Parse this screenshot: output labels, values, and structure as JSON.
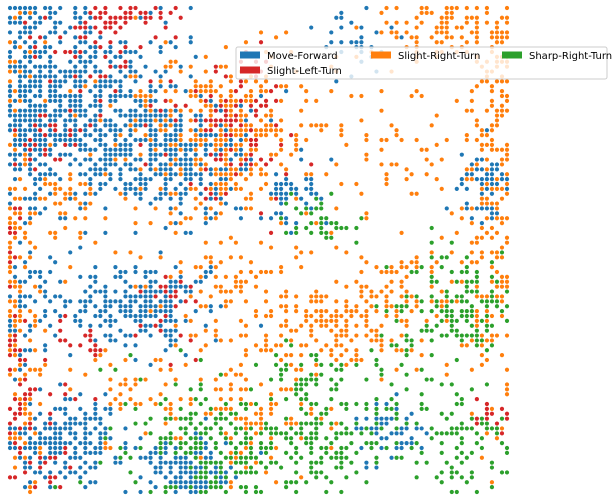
{
  "chart_data": {
    "type": "scatter",
    "title": "",
    "xlabel": "",
    "ylabel": "",
    "xlim": [
      0,
      99
    ],
    "ylim": [
      0,
      99
    ],
    "grid": false,
    "axes_visible": false,
    "legend_placement": "top-right",
    "point_generation": "blob-density-grid",
    "series": [
      {
        "name": "Move-Forward",
        "color": "#1f77b4",
        "blobs": [
          [
            6,
            80,
            14,
            12,
            0.7
          ],
          [
            20,
            73,
            10,
            8,
            0.6
          ],
          [
            33,
            68,
            9,
            7,
            0.6
          ],
          [
            25,
            39,
            8,
            5,
            0.7
          ],
          [
            11,
            10,
            8,
            5,
            0.7
          ],
          [
            35,
            4,
            5,
            4,
            0.7
          ],
          [
            2,
            97,
            6,
            4,
            0.5
          ],
          [
            55,
            60,
            4,
            4,
            0.4
          ],
          [
            94,
            63,
            3,
            4,
            0.6
          ],
          [
            75,
            13,
            4,
            4,
            0.4
          ],
          [
            69,
            92,
            4,
            4,
            0.3
          ],
          [
            4,
            40,
            4,
            10,
            0.3
          ]
        ]
      },
      {
        "name": "Slight-Right-Turn",
        "color": "#ff7f0e",
        "blobs": [
          [
            40,
            72,
            12,
            9,
            0.6
          ],
          [
            65,
            35,
            12,
            6,
            0.5
          ],
          [
            88,
            95,
            8,
            4,
            0.6
          ],
          [
            97,
            70,
            4,
            30,
            0.5
          ],
          [
            40,
            42,
            10,
            6,
            0.25
          ],
          [
            48,
            15,
            8,
            8,
            0.25
          ],
          [
            80,
            40,
            8,
            6,
            0.3
          ],
          [
            2,
            50,
            3,
            40,
            0.4
          ],
          [
            10,
            60,
            6,
            6,
            0.3
          ],
          [
            75,
            70,
            8,
            6,
            0.2
          ],
          [
            30,
            20,
            10,
            6,
            0.2
          ],
          [
            95,
            35,
            3,
            6,
            0.4
          ]
        ]
      },
      {
        "name": "Sharp-Right-Turn",
        "color": "#2ca02c",
        "blobs": [
          [
            90,
            38,
            7,
            5,
            0.7
          ],
          [
            42,
            8,
            10,
            8,
            0.6
          ],
          [
            63,
            12,
            9,
            6,
            0.5
          ],
          [
            80,
            28,
            6,
            6,
            0.3
          ],
          [
            60,
            22,
            5,
            4,
            0.5
          ],
          [
            58,
            5,
            8,
            4,
            0.4
          ],
          [
            88,
            10,
            6,
            6,
            0.4
          ],
          [
            62,
            55,
            4,
            3,
            0.4
          ]
        ]
      },
      {
        "name": "Slight-Left-Turn",
        "color": "#d62728",
        "blobs": [
          [
            45,
            74,
            6,
            7,
            0.6
          ],
          [
            5,
            73,
            6,
            4,
            0.6
          ],
          [
            25,
            98,
            6,
            2,
            0.6
          ],
          [
            30,
            37,
            3,
            4,
            0.6
          ],
          [
            20,
            80,
            6,
            6,
            0.3
          ],
          [
            1,
            25,
            2,
            20,
            0.5
          ],
          [
            8,
            9,
            4,
            5,
            0.4
          ],
          [
            97,
            15,
            3,
            2,
            0.6
          ],
          [
            14,
            93,
            10,
            4,
            0.3
          ],
          [
            14,
            32,
            3,
            3,
            0.3
          ]
        ]
      }
    ]
  }
}
